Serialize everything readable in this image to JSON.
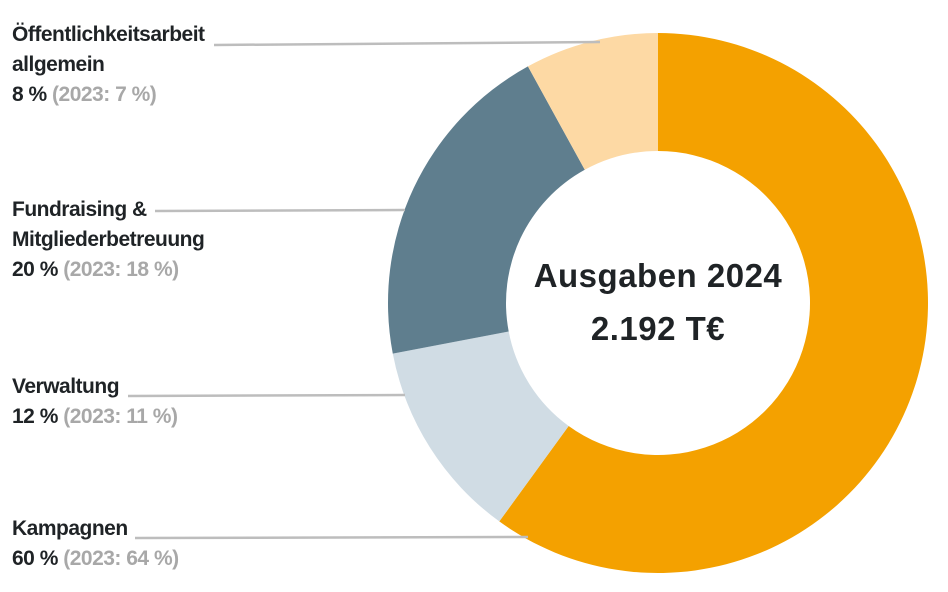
{
  "chart_data": {
    "type": "pie",
    "title": "Ausgaben 2024",
    "subtitle": "2.192 T€",
    "slices": [
      {
        "name": "Kampagnen",
        "value": 60,
        "value_text": "60 %",
        "prev_text": "(2023: 64 %)",
        "color": "#f4a100"
      },
      {
        "name": "Verwaltung",
        "value": 12,
        "value_text": "12 %",
        "prev_text": "(2023: 11 %)",
        "color": "#d0dce4"
      },
      {
        "name": "Fundraising & Mitgliederbetreuung",
        "value": 20,
        "value_text": "20 %",
        "prev_text": "(2023: 18 %)",
        "color": "#5f7e8e"
      },
      {
        "name": "Öffentlichkeitsarbeit allgemein",
        "value": 8,
        "value_text": "8 %",
        "prev_text": "(2023: 7 %)",
        "color": "#fdd9a4"
      }
    ]
  },
  "labels": [
    {
      "line1": "Öffentlichkeitsarbeit",
      "line2": "allgemein",
      "pct": "8 %",
      "prev": "(2023: 7 %)"
    },
    {
      "line1": "Fundraising &",
      "line2": "Mitgliederbetreuung",
      "pct": "20 %",
      "prev": "(2023: 18 %)"
    },
    {
      "line1": "Verwaltung",
      "pct": "12 %",
      "prev": "(2023: 11 %)"
    },
    {
      "line1": "Kampagnen",
      "pct": "60 %",
      "prev": "(2023: 64 %)"
    }
  ]
}
